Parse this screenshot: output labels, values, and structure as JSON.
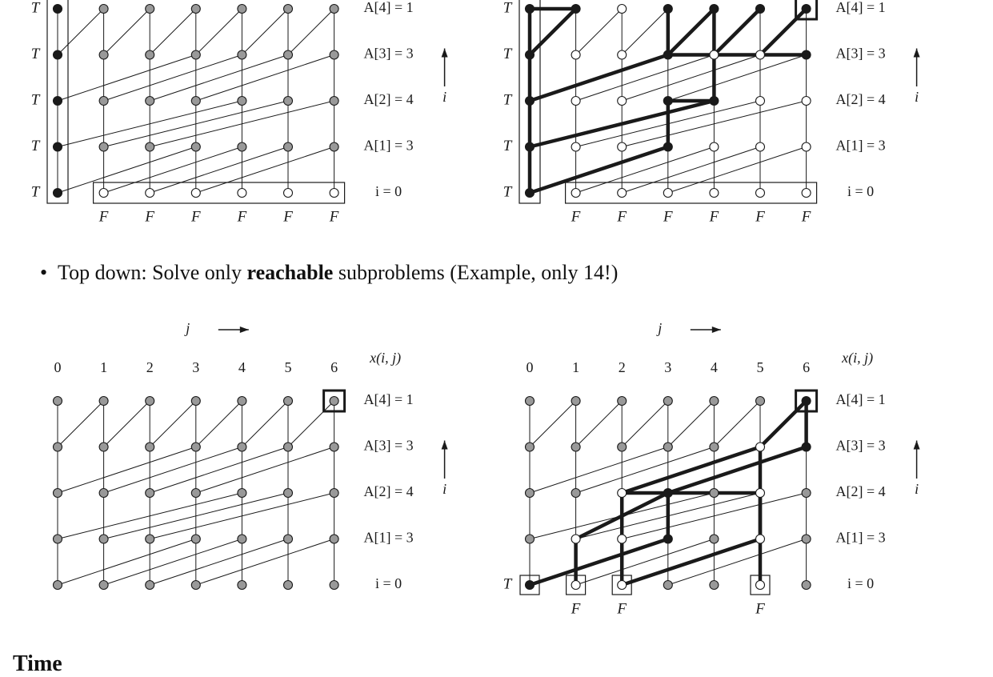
{
  "bullet": {
    "prefix": "Top down: Solve only ",
    "bold": "reachable",
    "suffix": " subproblems (Example, only 14!)"
  },
  "section_heading": "Time",
  "axis": {
    "j_label": "j",
    "i_label": "i",
    "x_label": "x(i, j)"
  },
  "columns": [
    "0",
    "1",
    "2",
    "3",
    "4",
    "5",
    "6"
  ],
  "rows": [
    {
      "i": 4,
      "label": "A[4] = 1"
    },
    {
      "i": 3,
      "label": "A[3] = 3"
    },
    {
      "i": 2,
      "label": "A[2] = 4"
    },
    {
      "i": 1,
      "label": "A[1] = 3"
    },
    {
      "i": 0,
      "label": "i = 0"
    }
  ],
  "jumps": {
    "4": 1,
    "3": 3,
    "2": 4,
    "1": 3
  },
  "cell_labels": {
    "true": "T",
    "false": "F"
  },
  "colors": {
    "ink": "#1a1a1a",
    "computed": "#999999",
    "true": "#1a1a1a",
    "false": "#ffffff"
  },
  "panels": [
    {
      "id": "bottom-up-grid",
      "show_column_numbers": false,
      "default_state": "computed",
      "states": [
        [
          0,
          0,
          "true"
        ],
        [
          1,
          0,
          "true"
        ],
        [
          2,
          0,
          "true"
        ],
        [
          3,
          0,
          "true"
        ],
        [
          4,
          0,
          "true"
        ],
        [
          0,
          1,
          "false"
        ],
        [
          0,
          2,
          "false"
        ],
        [
          0,
          3,
          "false"
        ],
        [
          0,
          4,
          "false"
        ],
        [
          0,
          5,
          "false"
        ],
        [
          0,
          6,
          "false"
        ]
      ],
      "row_side_labels": [
        "T",
        "T",
        "T",
        "T",
        "T"
      ],
      "bottom_labels": [
        [
          1,
          "F"
        ],
        [
          2,
          "F"
        ],
        [
          3,
          "F"
        ],
        [
          4,
          "F"
        ],
        [
          5,
          "F"
        ],
        [
          6,
          "F"
        ]
      ],
      "base_boxes": [
        "column0",
        "row0"
      ],
      "cell_boxes": [],
      "paths": []
    },
    {
      "id": "bottom-up-solved",
      "show_column_numbers": false,
      "default_state": "false",
      "states": [
        [
          0,
          0,
          "true"
        ],
        [
          1,
          0,
          "true"
        ],
        [
          2,
          0,
          "true"
        ],
        [
          3,
          0,
          "true"
        ],
        [
          4,
          0,
          "true"
        ],
        [
          1,
          3,
          "true"
        ],
        [
          2,
          3,
          "true"
        ],
        [
          2,
          4,
          "true"
        ],
        [
          3,
          3,
          "true"
        ],
        [
          3,
          6,
          "true"
        ],
        [
          4,
          1,
          "true"
        ],
        [
          4,
          3,
          "true"
        ],
        [
          4,
          4,
          "true"
        ],
        [
          4,
          5,
          "true"
        ],
        [
          4,
          6,
          "true"
        ]
      ],
      "row_side_labels": [
        "T",
        "T",
        "T",
        "T",
        "T"
      ],
      "bottom_labels": [
        [
          1,
          "F"
        ],
        [
          2,
          "F"
        ],
        [
          3,
          "F"
        ],
        [
          4,
          "F"
        ],
        [
          5,
          "F"
        ],
        [
          6,
          "F"
        ]
      ],
      "base_boxes": [
        "column0",
        "row0"
      ],
      "cell_boxes": [
        [
          4,
          6
        ]
      ],
      "paths": [
        [
          [
            0,
            0
          ],
          [
            4,
            0
          ]
        ],
        [
          [
            4,
            0
          ],
          [
            4,
            1
          ]
        ],
        [
          [
            3,
            0
          ],
          [
            4,
            1
          ]
        ],
        [
          [
            2,
            0
          ],
          [
            3,
            3
          ]
        ],
        [
          [
            3,
            3
          ],
          [
            4,
            3
          ]
        ],
        [
          [
            1,
            0
          ],
          [
            2,
            4
          ]
        ],
        [
          [
            2,
            4
          ],
          [
            3,
            4
          ]
        ],
        [
          [
            3,
            4
          ],
          [
            4,
            4
          ]
        ],
        [
          [
            0,
            0
          ],
          [
            1,
            3
          ]
        ],
        [
          [
            1,
            3
          ],
          [
            2,
            3
          ]
        ],
        [
          [
            2,
            3
          ],
          [
            2,
            4
          ]
        ],
        [
          [
            3,
            3
          ],
          [
            4,
            4
          ]
        ],
        [
          [
            3,
            4
          ],
          [
            4,
            5
          ]
        ],
        [
          [
            3,
            3
          ],
          [
            3,
            6
          ]
        ],
        [
          [
            3,
            5
          ],
          [
            4,
            6
          ]
        ]
      ]
    },
    {
      "id": "top-down-grid",
      "show_column_numbers": true,
      "default_state": "computed",
      "states": [],
      "row_side_labels": [],
      "bottom_labels": [],
      "base_boxes": [],
      "cell_boxes": [
        [
          4,
          6
        ]
      ],
      "paths": []
    },
    {
      "id": "top-down-solved",
      "show_column_numbers": true,
      "default_state": "computed",
      "states": [
        [
          4,
          6,
          "true"
        ],
        [
          3,
          5,
          "false"
        ],
        [
          3,
          6,
          "true"
        ],
        [
          2,
          5,
          "false"
        ],
        [
          2,
          3,
          "true"
        ],
        [
          2,
          2,
          "false"
        ],
        [
          1,
          5,
          "false"
        ],
        [
          1,
          3,
          "true"
        ],
        [
          1,
          2,
          "false"
        ],
        [
          1,
          1,
          "false"
        ],
        [
          0,
          0,
          "true"
        ],
        [
          0,
          1,
          "false"
        ],
        [
          0,
          2,
          "false"
        ],
        [
          0,
          5,
          "false"
        ]
      ],
      "row_side_labels": [],
      "zero_row_label": "T",
      "bottom_labels": [
        [
          1,
          "F"
        ],
        [
          2,
          "F"
        ],
        [
          5,
          "F"
        ]
      ],
      "base_boxes": [],
      "cell_boxes": [
        [
          4,
          6
        ],
        [
          0,
          0
        ],
        [
          0,
          1
        ],
        [
          0,
          2
        ],
        [
          0,
          5
        ]
      ],
      "paths": [
        [
          [
            4,
            6
          ],
          [
            3,
            5
          ]
        ],
        [
          [
            4,
            6
          ],
          [
            3,
            6
          ]
        ],
        [
          [
            3,
            5
          ],
          [
            2,
            2
          ]
        ],
        [
          [
            3,
            6
          ],
          [
            2,
            3
          ]
        ],
        [
          [
            3,
            5
          ],
          [
            0,
            5
          ]
        ],
        [
          [
            2,
            2
          ],
          [
            1,
            2
          ]
        ],
        [
          [
            2,
            2
          ],
          [
            2,
            5
          ]
        ],
        [
          [
            2,
            3
          ],
          [
            1,
            3
          ]
        ],
        [
          [
            2,
            3
          ],
          [
            1,
            1
          ]
        ],
        [
          [
            2,
            5
          ],
          [
            1,
            5
          ]
        ],
        [
          [
            1,
            1
          ],
          [
            0,
            1
          ]
        ],
        [
          [
            1,
            2
          ],
          [
            0,
            2
          ]
        ],
        [
          [
            1,
            3
          ],
          [
            0,
            0
          ]
        ],
        [
          [
            1,
            5
          ],
          [
            0,
            2
          ]
        ]
      ]
    }
  ]
}
